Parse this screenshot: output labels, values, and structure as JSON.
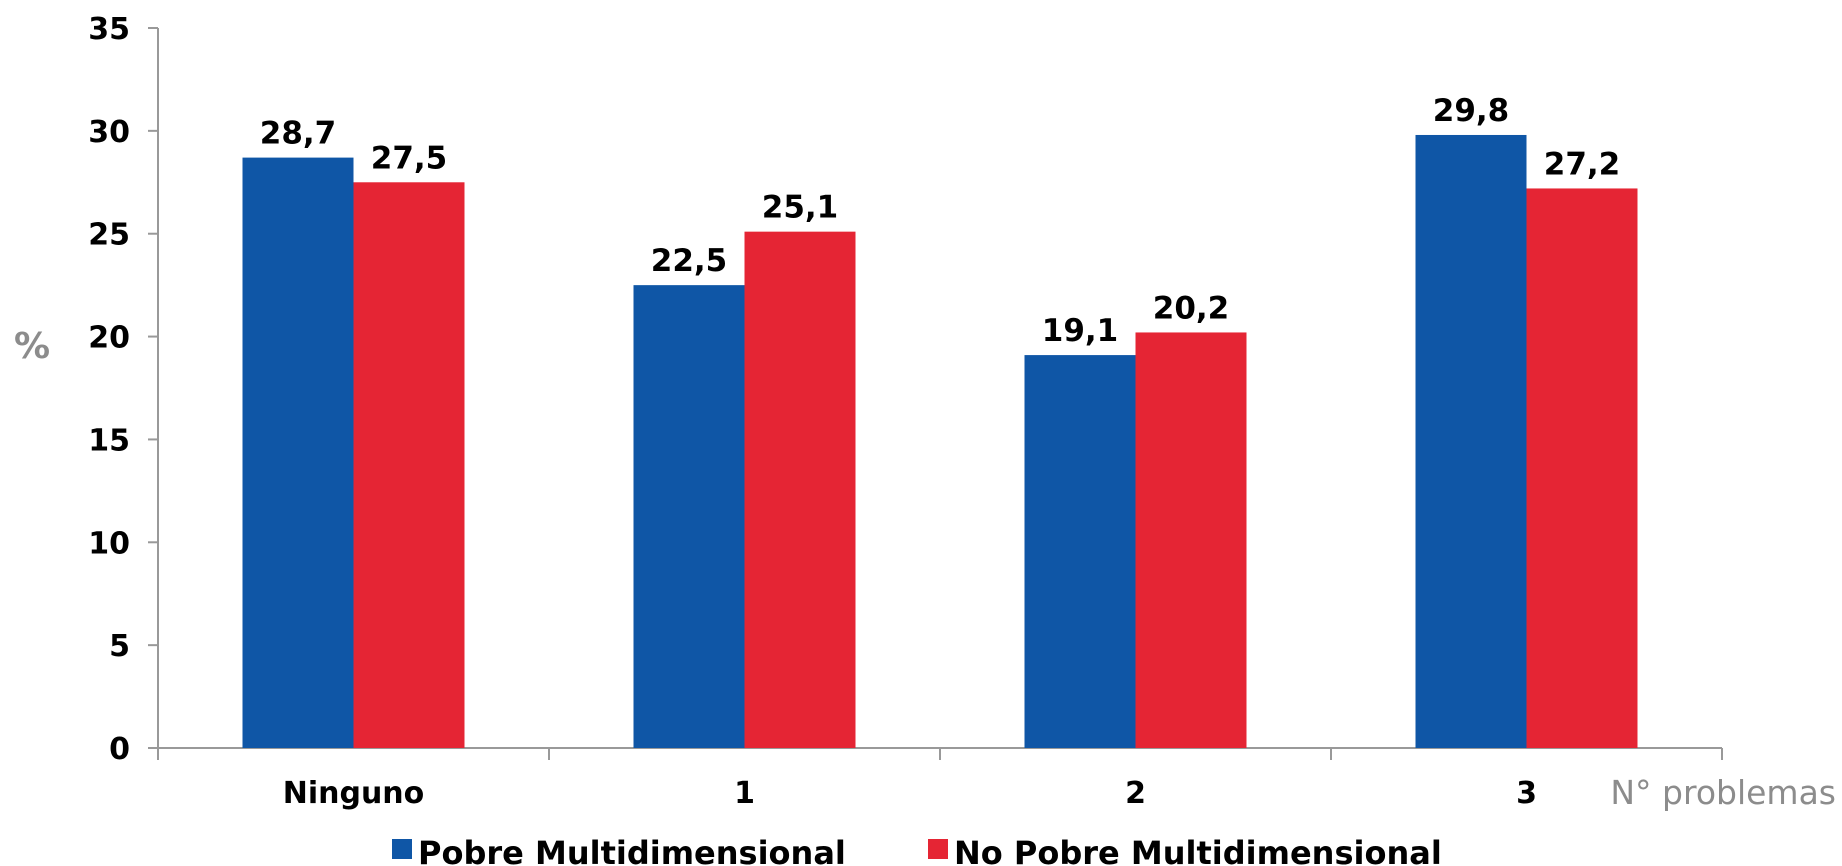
{
  "chart_data": {
    "type": "bar",
    "title": "",
    "xlabel": "N° problemas",
    "ylabel": "%",
    "ylim": [
      0,
      35
    ],
    "yticks": [
      0,
      5,
      10,
      15,
      20,
      25,
      30,
      35
    ],
    "categories": [
      "Ninguno",
      "1",
      "2",
      "3"
    ],
    "series": [
      {
        "name": "Pobre Multidimensional",
        "color": "#0f56a6",
        "values": [
          28.7,
          22.5,
          19.1,
          29.8
        ],
        "labels": [
          "28,7",
          "22,5",
          "19,1",
          "29,8"
        ]
      },
      {
        "name": "No Pobre Multidimensional",
        "color": "#e52534",
        "values": [
          27.5,
          25.1,
          20.2,
          27.2
        ],
        "labels": [
          "27,5",
          "25,1",
          "20,2",
          "27,2"
        ]
      }
    ],
    "legend_position": "bottom",
    "grid": false
  }
}
